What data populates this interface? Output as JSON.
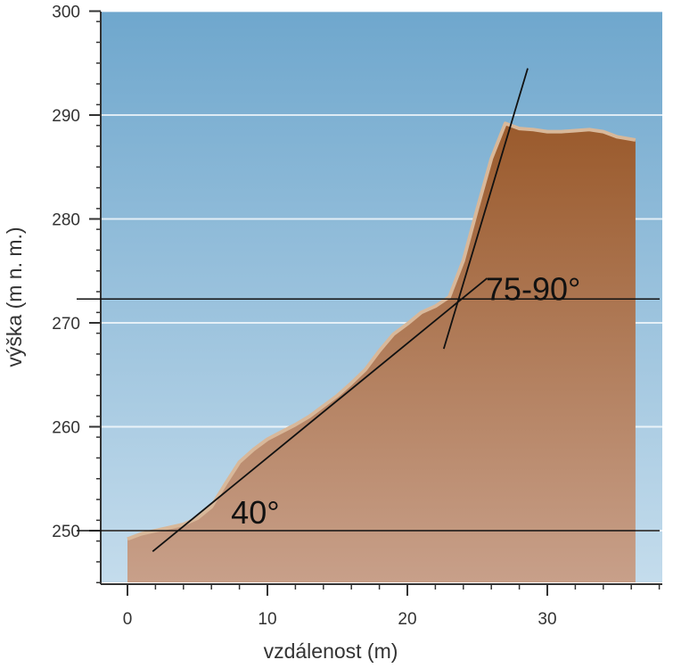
{
  "chart_data": {
    "type": "area",
    "xlabel": "vzdálenost (m)",
    "ylabel": "výška (m n. m.)",
    "xlim": [
      -2,
      38
    ],
    "ylim": [
      245,
      300
    ],
    "xticks": [
      0,
      10,
      20,
      30
    ],
    "yticks": [
      250,
      260,
      270,
      280,
      290,
      300
    ],
    "grid": "horizontal",
    "colors": {
      "sky_top": "#6fa7cd",
      "sky_bottom": "#c4dcec",
      "terrain_top": "#9a5a2c",
      "terrain_bottom": "#c8a08a",
      "terrain_edge": "#d8b89a"
    },
    "profile": {
      "x": [
        0,
        1,
        2,
        3,
        4,
        5,
        6,
        7,
        8,
        9,
        10,
        11,
        12,
        13,
        14,
        15,
        16,
        17,
        18,
        19,
        20,
        21,
        22,
        23,
        24,
        25,
        26,
        27,
        28,
        29,
        30,
        31,
        32,
        33,
        34,
        35,
        36.3
      ],
      "y": [
        249.2,
        249.7,
        250.0,
        250.3,
        250.6,
        251.2,
        252.3,
        254.5,
        256.6,
        257.8,
        258.8,
        259.5,
        260.2,
        261.0,
        262.0,
        263.0,
        264.2,
        265.5,
        267.3,
        268.9,
        269.9,
        271.0,
        271.6,
        272.5,
        276.0,
        281.0,
        285.8,
        289.2,
        288.7,
        288.6,
        288.4,
        288.4,
        288.5,
        288.6,
        288.4,
        287.9,
        287.6
      ]
    },
    "reference_lines": [
      {
        "type": "horizontal",
        "y": 250
      },
      {
        "type": "horizontal",
        "y": 272.3
      }
    ],
    "slope_lines": [
      {
        "label": "40°",
        "from": [
          1.8,
          248.0
        ],
        "to": [
          25.7,
          274.3
        ]
      },
      {
        "label": "75-90°",
        "from": [
          22.6,
          267.5
        ],
        "to": [
          28.6,
          294.5
        ]
      }
    ],
    "annotations": [
      {
        "text": "40°",
        "x": 7.4,
        "y": 250.7
      },
      {
        "text": "75-90°",
        "x": 25.6,
        "y": 272.2
      }
    ]
  }
}
